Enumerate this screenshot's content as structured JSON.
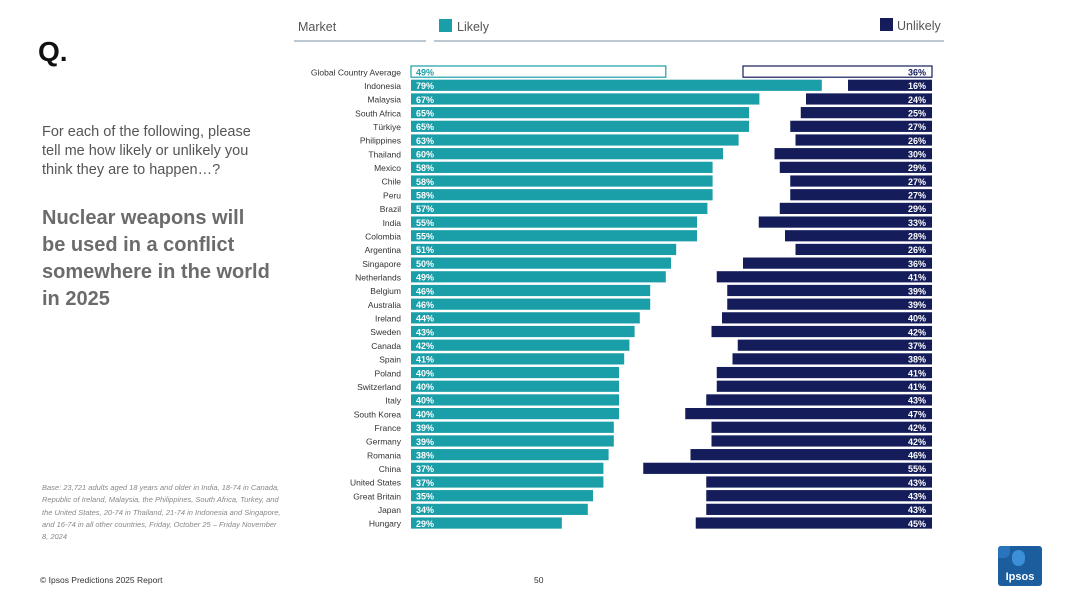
{
  "header": {
    "market_label": "Market",
    "likely_label": "Likely",
    "unlikely_label": "Unlikely"
  },
  "brand": {
    "q_mark": "Q.",
    "logo_text": "Ipsos"
  },
  "question_text": "For each of the following, please tell me how likely or unlikely you think they are to happen…?",
  "headline": "Nuclear weapons will be used in a conflict somewhere in the world in 2025",
  "base_note": "Base: 23,721 adults aged 18 years and older in India, 18-74 in Canada, Republic of Ireland, Malaysia, the Philippines, South Africa, Turkey, and the United States, 20-74 in Thailand, 21-74 in Indonesia and Singapore, and 16-74 in all other countries, Friday, October 25 – Friday November  8, 2024",
  "footer": {
    "copyright": "© Ipsos Predictions 2025 Report",
    "page_number": "50"
  },
  "colors": {
    "likely": "#1a9ea8",
    "unlikely": "#141d5a",
    "header_rule": "#7a8fa6"
  },
  "chart_data": {
    "type": "bar",
    "title": "Nuclear weapons will be used in a conflict somewhere in the world in 2025",
    "xlabel": "",
    "ylabel": "Market",
    "xlim": [
      0,
      100
    ],
    "categories": [
      "Global Country Average",
      "Indonesia",
      "Malaysia",
      "South Africa",
      "Türkiye",
      "Philippines",
      "Thailand",
      "Mexico",
      "Chile",
      "Peru",
      "Brazil",
      "India",
      "Colombia",
      "Argentina",
      "Singapore",
      "Netherlands",
      "Belgium",
      "Australia",
      "Ireland",
      "Sweden",
      "Canada",
      "Spain",
      "Poland",
      "Switzerland",
      "Italy",
      "South Korea",
      "France",
      "Germany",
      "Romania",
      "China",
      "United States",
      "Great Britain",
      "Japan",
      "Hungary"
    ],
    "series": [
      {
        "name": "Likely",
        "values": [
          49,
          79,
          67,
          65,
          65,
          63,
          60,
          58,
          58,
          58,
          57,
          55,
          55,
          51,
          50,
          49,
          46,
          46,
          44,
          43,
          42,
          41,
          40,
          40,
          40,
          40,
          39,
          39,
          38,
          37,
          37,
          35,
          34,
          29
        ]
      },
      {
        "name": "Unlikely",
        "values": [
          36,
          16,
          24,
          25,
          27,
          26,
          30,
          29,
          27,
          27,
          29,
          33,
          28,
          26,
          36,
          41,
          39,
          39,
          40,
          42,
          37,
          38,
          41,
          41,
          43,
          47,
          42,
          42,
          46,
          55,
          43,
          43,
          43,
          45
        ]
      }
    ],
    "legend": "top"
  }
}
